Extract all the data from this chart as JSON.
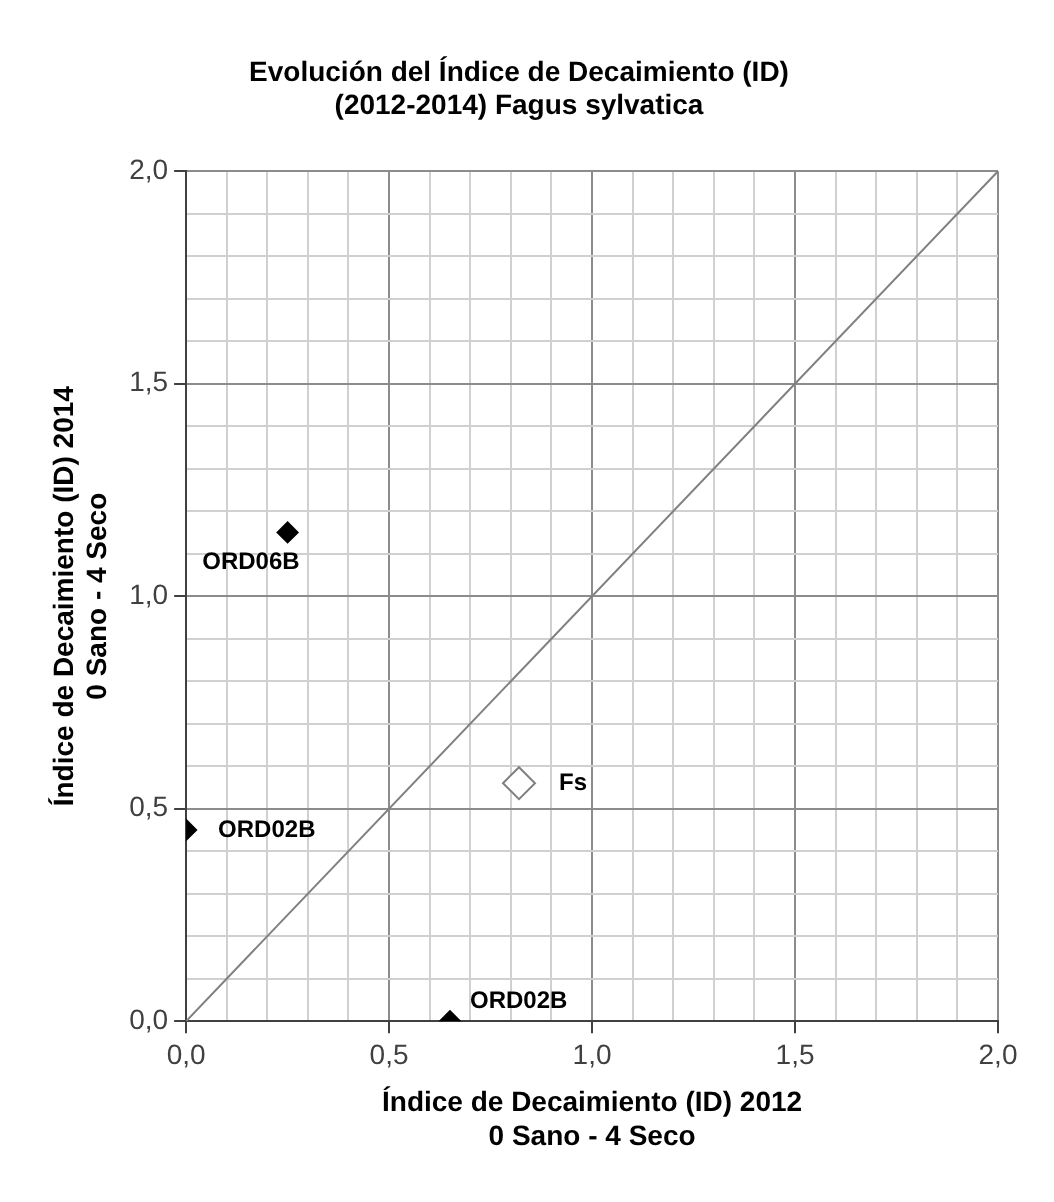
{
  "chart_data": {
    "type": "scatter",
    "title": "Evolución del Índice de Decaimiento (ID)\n(2012-2014) Fagus sylvatica",
    "xlabel": "Índice de Decaimiento (ID) 2012\n0 Sano - 4 Seco",
    "ylabel": "Índice de Decaimiento (ID) 2014\n0 Sano - 4 Seco",
    "series": [
      {
        "color": "#000000",
        "x": [
          0.25,
          0,
          0.65
        ],
        "values": [
          1.15,
          0.45,
          0
        ],
        "value_labels": [
          "ORD06B",
          "ORD02B",
          "ORD02B"
        ],
        "marker": "diamond"
      },
      {
        "color": "#7f7f7f",
        "x": [
          0.82
        ],
        "values": [
          0.56
        ],
        "value_labels": [
          "Fs"
        ],
        "marker": "diamond"
      },
      {
        "type": "line",
        "color": "#808080",
        "x": [
          0,
          2
        ],
        "values": [
          0,
          2
        ],
        "marker": "none",
        "line_style": "solid"
      }
    ],
    "xlim": [
      0,
      2
    ],
    "ylim": [
      0,
      2
    ],
    "xticks": [
      {
        "value": 0,
        "label": "0,0"
      },
      {
        "value": 0.1,
        "label": null
      },
      {
        "value": 0.2,
        "label": null
      },
      {
        "value": 0.3,
        "label": null
      },
      {
        "value": 0.4,
        "label": null
      },
      {
        "value": 0.5,
        "label": "0,5"
      },
      {
        "value": 0.6,
        "label": null
      },
      {
        "value": 0.7,
        "label": null
      },
      {
        "value": 0.8,
        "label": null
      },
      {
        "value": 0.9,
        "label": null
      },
      {
        "value": 1,
        "label": "1,0"
      },
      {
        "value": 1.1,
        "label": null
      },
      {
        "value": 1.2,
        "label": null
      },
      {
        "value": 1.3,
        "label": null
      },
      {
        "value": 1.4,
        "label": null
      },
      {
        "value": 1.5,
        "label": "1,5"
      },
      {
        "value": 1.6,
        "label": null
      },
      {
        "value": 1.7,
        "label": null
      },
      {
        "value": 1.8,
        "label": null
      },
      {
        "value": 1.9,
        "label": null
      },
      {
        "value": 2,
        "label": "2,0"
      }
    ],
    "yticks": [
      {
        "value": 0,
        "label": "0,0"
      },
      {
        "value": 0.1,
        "label": null
      },
      {
        "value": 0.2,
        "label": null
      },
      {
        "value": 0.3,
        "label": null
      },
      {
        "value": 0.4,
        "label": null
      },
      {
        "value": 0.5,
        "label": "0,5"
      },
      {
        "value": 0.6,
        "label": null
      },
      {
        "value": 0.7,
        "label": null
      },
      {
        "value": 0.8,
        "label": null
      },
      {
        "value": 0.9,
        "label": null
      },
      {
        "value": 1,
        "label": "1,0"
      },
      {
        "value": 1.1,
        "label": null
      },
      {
        "value": 1.2,
        "label": null
      },
      {
        "value": 1.3,
        "label": null
      },
      {
        "value": 1.4,
        "label": null
      },
      {
        "value": 1.5,
        "label": "1,5"
      },
      {
        "value": 1.6,
        "label": null
      },
      {
        "value": 1.7,
        "label": null
      },
      {
        "value": 1.8,
        "label": null
      },
      {
        "value": 1.9,
        "label": null
      },
      {
        "value": 2,
        "label": "2,0"
      }
    ],
    "grid": true,
    "legend": false
  }
}
